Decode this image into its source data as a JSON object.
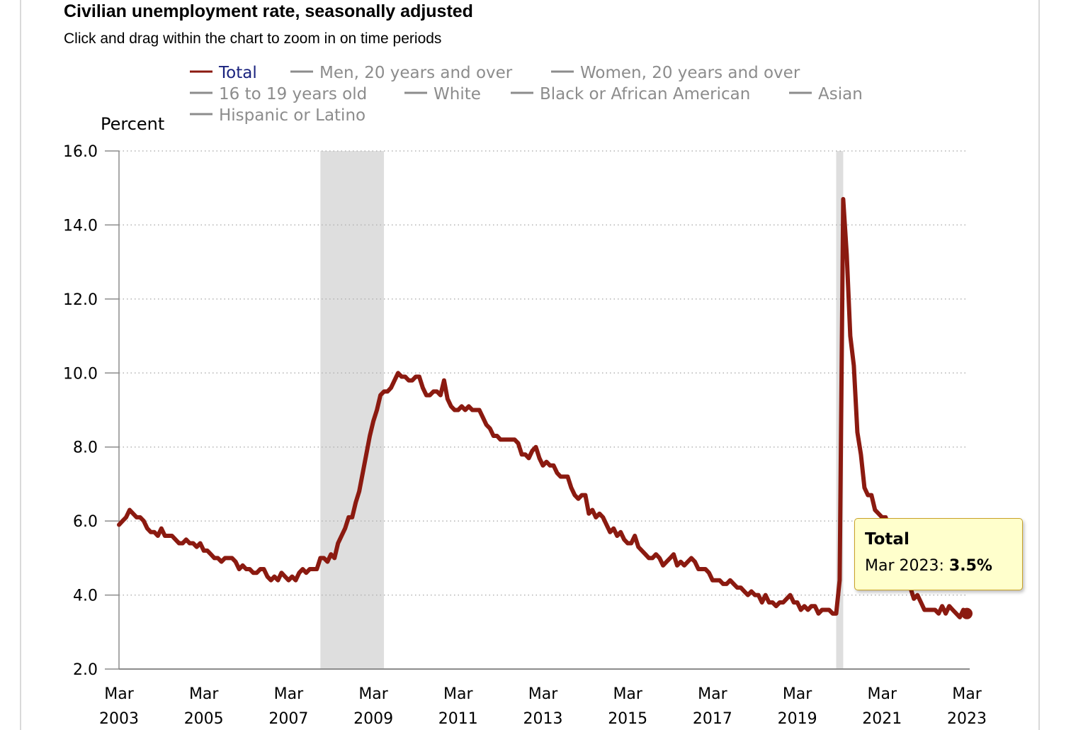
{
  "title": "Civilian unemployment rate, seasonally adjusted",
  "subtitle": "Click and drag within the chart to zoom in on time periods",
  "tooltip": {
    "series": "Total",
    "label": "Mar 2023:",
    "value": "3.5%"
  },
  "colors": {
    "series": "#8b1a10",
    "legend_active_text": "#1a237e",
    "legend_inactive": "#8c8c8c",
    "recession_band": "#dedede",
    "grid": "#b3b3b3",
    "tooltip_bg": "#ffffcc"
  },
  "chart_data": {
    "type": "line",
    "ylabel": "Percent",
    "ylim": [
      2,
      16
    ],
    "yticks": [
      "16.0",
      "14.0",
      "12.0",
      "10.0",
      "8.0",
      "6.0",
      "4.0",
      "2.0"
    ],
    "xlim": [
      "2003-03",
      "2023-03"
    ],
    "xticks": [
      {
        "month": "Mar",
        "year": "2003"
      },
      {
        "month": "Mar",
        "year": "2005"
      },
      {
        "month": "Mar",
        "year": "2007"
      },
      {
        "month": "Mar",
        "year": "2009"
      },
      {
        "month": "Mar",
        "year": "2011"
      },
      {
        "month": "Mar",
        "year": "2013"
      },
      {
        "month": "Mar",
        "year": "2015"
      },
      {
        "month": "Mar",
        "year": "2017"
      },
      {
        "month": "Mar",
        "year": "2019"
      },
      {
        "month": "Mar",
        "year": "2021"
      },
      {
        "month": "Mar",
        "year": "2023"
      }
    ],
    "grid": "horizontal dotted",
    "legend_position": "top",
    "legend": [
      {
        "name": "Total",
        "active": true
      },
      {
        "name": "Men, 20 years and over",
        "active": false
      },
      {
        "name": "Women, 20 years and over",
        "active": false
      },
      {
        "name": "16 to 19 years old",
        "active": false
      },
      {
        "name": "White",
        "active": false
      },
      {
        "name": "Black or African American",
        "active": false
      },
      {
        "name": "Asian",
        "active": false
      },
      {
        "name": "Hispanic or Latino",
        "active": false
      }
    ],
    "recessions": [
      {
        "start": "2007-12",
        "end": "2009-06"
      },
      {
        "start": "2020-02",
        "end": "2020-04"
      }
    ],
    "series": [
      {
        "name": "Total",
        "highlight_point": "2023-03",
        "points": [
          [
            "2003-03",
            5.9
          ],
          [
            "2003-04",
            6.0
          ],
          [
            "2003-05",
            6.1
          ],
          [
            "2003-06",
            6.3
          ],
          [
            "2003-07",
            6.2
          ],
          [
            "2003-08",
            6.1
          ],
          [
            "2003-09",
            6.1
          ],
          [
            "2003-10",
            6.0
          ],
          [
            "2003-11",
            5.8
          ],
          [
            "2003-12",
            5.7
          ],
          [
            "2004-01",
            5.7
          ],
          [
            "2004-02",
            5.6
          ],
          [
            "2004-03",
            5.8
          ],
          [
            "2004-04",
            5.6
          ],
          [
            "2004-05",
            5.6
          ],
          [
            "2004-06",
            5.6
          ],
          [
            "2004-07",
            5.5
          ],
          [
            "2004-08",
            5.4
          ],
          [
            "2004-09",
            5.4
          ],
          [
            "2004-10",
            5.5
          ],
          [
            "2004-11",
            5.4
          ],
          [
            "2004-12",
            5.4
          ],
          [
            "2005-01",
            5.3
          ],
          [
            "2005-02",
            5.4
          ],
          [
            "2005-03",
            5.2
          ],
          [
            "2005-04",
            5.2
          ],
          [
            "2005-05",
            5.1
          ],
          [
            "2005-06",
            5.0
          ],
          [
            "2005-07",
            5.0
          ],
          [
            "2005-08",
            4.9
          ],
          [
            "2005-09",
            5.0
          ],
          [
            "2005-10",
            5.0
          ],
          [
            "2005-11",
            5.0
          ],
          [
            "2005-12",
            4.9
          ],
          [
            "2006-01",
            4.7
          ],
          [
            "2006-02",
            4.8
          ],
          [
            "2006-03",
            4.7
          ],
          [
            "2006-04",
            4.7
          ],
          [
            "2006-05",
            4.6
          ],
          [
            "2006-06",
            4.6
          ],
          [
            "2006-07",
            4.7
          ],
          [
            "2006-08",
            4.7
          ],
          [
            "2006-09",
            4.5
          ],
          [
            "2006-10",
            4.4
          ],
          [
            "2006-11",
            4.5
          ],
          [
            "2006-12",
            4.4
          ],
          [
            "2007-01",
            4.6
          ],
          [
            "2007-02",
            4.5
          ],
          [
            "2007-03",
            4.4
          ],
          [
            "2007-04",
            4.5
          ],
          [
            "2007-05",
            4.4
          ],
          [
            "2007-06",
            4.6
          ],
          [
            "2007-07",
            4.7
          ],
          [
            "2007-08",
            4.6
          ],
          [
            "2007-09",
            4.7
          ],
          [
            "2007-10",
            4.7
          ],
          [
            "2007-11",
            4.7
          ],
          [
            "2007-12",
            5.0
          ],
          [
            "2008-01",
            5.0
          ],
          [
            "2008-02",
            4.9
          ],
          [
            "2008-03",
            5.1
          ],
          [
            "2008-04",
            5.0
          ],
          [
            "2008-05",
            5.4
          ],
          [
            "2008-06",
            5.6
          ],
          [
            "2008-07",
            5.8
          ],
          [
            "2008-08",
            6.1
          ],
          [
            "2008-09",
            6.1
          ],
          [
            "2008-10",
            6.5
          ],
          [
            "2008-11",
            6.8
          ],
          [
            "2008-12",
            7.3
          ],
          [
            "2009-01",
            7.8
          ],
          [
            "2009-02",
            8.3
          ],
          [
            "2009-03",
            8.7
          ],
          [
            "2009-04",
            9.0
          ],
          [
            "2009-05",
            9.4
          ],
          [
            "2009-06",
            9.5
          ],
          [
            "2009-07",
            9.5
          ],
          [
            "2009-08",
            9.6
          ],
          [
            "2009-09",
            9.8
          ],
          [
            "2009-10",
            10.0
          ],
          [
            "2009-11",
            9.9
          ],
          [
            "2009-12",
            9.9
          ],
          [
            "2010-01",
            9.8
          ],
          [
            "2010-02",
            9.8
          ],
          [
            "2010-03",
            9.9
          ],
          [
            "2010-04",
            9.9
          ],
          [
            "2010-05",
            9.6
          ],
          [
            "2010-06",
            9.4
          ],
          [
            "2010-07",
            9.4
          ],
          [
            "2010-08",
            9.5
          ],
          [
            "2010-09",
            9.5
          ],
          [
            "2010-10",
            9.4
          ],
          [
            "2010-11",
            9.8
          ],
          [
            "2010-12",
            9.3
          ],
          [
            "2011-01",
            9.1
          ],
          [
            "2011-02",
            9.0
          ],
          [
            "2011-03",
            9.0
          ],
          [
            "2011-04",
            9.1
          ],
          [
            "2011-05",
            9.0
          ],
          [
            "2011-06",
            9.1
          ],
          [
            "2011-07",
            9.0
          ],
          [
            "2011-08",
            9.0
          ],
          [
            "2011-09",
            9.0
          ],
          [
            "2011-10",
            8.8
          ],
          [
            "2011-11",
            8.6
          ],
          [
            "2011-12",
            8.5
          ],
          [
            "2012-01",
            8.3
          ],
          [
            "2012-02",
            8.3
          ],
          [
            "2012-03",
            8.2
          ],
          [
            "2012-04",
            8.2
          ],
          [
            "2012-05",
            8.2
          ],
          [
            "2012-06",
            8.2
          ],
          [
            "2012-07",
            8.2
          ],
          [
            "2012-08",
            8.1
          ],
          [
            "2012-09",
            7.8
          ],
          [
            "2012-10",
            7.8
          ],
          [
            "2012-11",
            7.7
          ],
          [
            "2012-12",
            7.9
          ],
          [
            "2013-01",
            8.0
          ],
          [
            "2013-02",
            7.7
          ],
          [
            "2013-03",
            7.5
          ],
          [
            "2013-04",
            7.6
          ],
          [
            "2013-05",
            7.5
          ],
          [
            "2013-06",
            7.5
          ],
          [
            "2013-07",
            7.3
          ],
          [
            "2013-08",
            7.2
          ],
          [
            "2013-09",
            7.2
          ],
          [
            "2013-10",
            7.2
          ],
          [
            "2013-11",
            6.9
          ],
          [
            "2013-12",
            6.7
          ],
          [
            "2014-01",
            6.6
          ],
          [
            "2014-02",
            6.7
          ],
          [
            "2014-03",
            6.7
          ],
          [
            "2014-04",
            6.2
          ],
          [
            "2014-05",
            6.3
          ],
          [
            "2014-06",
            6.1
          ],
          [
            "2014-07",
            6.2
          ],
          [
            "2014-08",
            6.1
          ],
          [
            "2014-09",
            5.9
          ],
          [
            "2014-10",
            5.7
          ],
          [
            "2014-11",
            5.8
          ],
          [
            "2014-12",
            5.6
          ],
          [
            "2015-01",
            5.7
          ],
          [
            "2015-02",
            5.5
          ],
          [
            "2015-03",
            5.4
          ],
          [
            "2015-04",
            5.4
          ],
          [
            "2015-05",
            5.6
          ],
          [
            "2015-06",
            5.3
          ],
          [
            "2015-07",
            5.2
          ],
          [
            "2015-08",
            5.1
          ],
          [
            "2015-09",
            5.0
          ],
          [
            "2015-10",
            5.0
          ],
          [
            "2015-11",
            5.1
          ],
          [
            "2015-12",
            5.0
          ],
          [
            "2016-01",
            4.8
          ],
          [
            "2016-02",
            4.9
          ],
          [
            "2016-03",
            5.0
          ],
          [
            "2016-04",
            5.1
          ],
          [
            "2016-05",
            4.8
          ],
          [
            "2016-06",
            4.9
          ],
          [
            "2016-07",
            4.8
          ],
          [
            "2016-08",
            4.9
          ],
          [
            "2016-09",
            5.0
          ],
          [
            "2016-10",
            4.9
          ],
          [
            "2016-11",
            4.7
          ],
          [
            "2016-12",
            4.7
          ],
          [
            "2017-01",
            4.7
          ],
          [
            "2017-02",
            4.6
          ],
          [
            "2017-03",
            4.4
          ],
          [
            "2017-04",
            4.4
          ],
          [
            "2017-05",
            4.4
          ],
          [
            "2017-06",
            4.3
          ],
          [
            "2017-07",
            4.3
          ],
          [
            "2017-08",
            4.4
          ],
          [
            "2017-09",
            4.3
          ],
          [
            "2017-10",
            4.2
          ],
          [
            "2017-11",
            4.2
          ],
          [
            "2017-12",
            4.1
          ],
          [
            "2018-01",
            4.0
          ],
          [
            "2018-02",
            4.1
          ],
          [
            "2018-03",
            4.0
          ],
          [
            "2018-04",
            4.0
          ],
          [
            "2018-05",
            3.8
          ],
          [
            "2018-06",
            4.0
          ],
          [
            "2018-07",
            3.8
          ],
          [
            "2018-08",
            3.8
          ],
          [
            "2018-09",
            3.7
          ],
          [
            "2018-10",
            3.8
          ],
          [
            "2018-11",
            3.8
          ],
          [
            "2018-12",
            3.9
          ],
          [
            "2019-01",
            4.0
          ],
          [
            "2019-02",
            3.8
          ],
          [
            "2019-03",
            3.8
          ],
          [
            "2019-04",
            3.6
          ],
          [
            "2019-05",
            3.7
          ],
          [
            "2019-06",
            3.6
          ],
          [
            "2019-07",
            3.7
          ],
          [
            "2019-08",
            3.7
          ],
          [
            "2019-09",
            3.5
          ],
          [
            "2019-10",
            3.6
          ],
          [
            "2019-11",
            3.6
          ],
          [
            "2019-12",
            3.6
          ],
          [
            "2020-01",
            3.5
          ],
          [
            "2020-02",
            3.5
          ],
          [
            "2020-03",
            4.4
          ],
          [
            "2020-04",
            14.7
          ],
          [
            "2020-05",
            13.2
          ],
          [
            "2020-06",
            11.0
          ],
          [
            "2020-07",
            10.2
          ],
          [
            "2020-08",
            8.4
          ],
          [
            "2020-09",
            7.8
          ],
          [
            "2020-10",
            6.9
          ],
          [
            "2020-11",
            6.7
          ],
          [
            "2020-12",
            6.7
          ],
          [
            "2021-01",
            6.3
          ],
          [
            "2021-02",
            6.2
          ],
          [
            "2021-03",
            6.1
          ],
          [
            "2021-04",
            6.1
          ],
          [
            "2021-05",
            5.8
          ],
          [
            "2021-06",
            5.9
          ],
          [
            "2021-07",
            5.4
          ],
          [
            "2021-08",
            5.2
          ],
          [
            "2021-09",
            4.8
          ],
          [
            "2021-10",
            4.6
          ],
          [
            "2021-11",
            4.2
          ],
          [
            "2021-12",
            3.9
          ],
          [
            "2022-01",
            4.0
          ],
          [
            "2022-02",
            3.8
          ],
          [
            "2022-03",
            3.6
          ],
          [
            "2022-04",
            3.6
          ],
          [
            "2022-05",
            3.6
          ],
          [
            "2022-06",
            3.6
          ],
          [
            "2022-07",
            3.5
          ],
          [
            "2022-08",
            3.7
          ],
          [
            "2022-09",
            3.5
          ],
          [
            "2022-10",
            3.7
          ],
          [
            "2022-11",
            3.6
          ],
          [
            "2022-12",
            3.5
          ],
          [
            "2023-01",
            3.4
          ],
          [
            "2023-02",
            3.6
          ],
          [
            "2023-03",
            3.5
          ]
        ]
      }
    ]
  }
}
